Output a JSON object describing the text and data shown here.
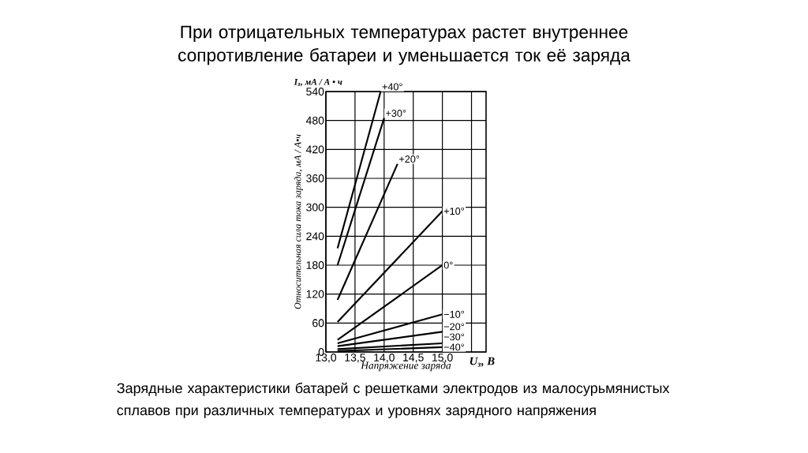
{
  "chart_data": {
    "type": "line",
    "title": "При отрицательных температурах растет внутреннее сопротивление батареи и уменьшается ток её заряда",
    "xlabel": "Напряжение заряда",
    "ylabel": "Относительная сила тока заряда, мА / А•ч",
    "annotations": [
      "I$_{з}$, мА / А • ч",
      "U$_{з}$, В",
      "Зарядные характеристики батарей с решетками электродов из малосурьмянистых сплавов при различных температурах и уровнях зарядного напряжения"
    ],
    "series": [
      {
        "name": "+40°",
        "color": "#000000",
        "x": [
          13.2,
          13.94
        ],
        "values": [
          215,
          540
        ]
      },
      {
        "name": "+30°",
        "color": "#000000",
        "x": [
          13.2,
          14.0
        ],
        "values": [
          180,
          485
        ]
      },
      {
        "name": "+20°",
        "color": "#000000",
        "x": [
          13.2,
          14.23
        ],
        "values": [
          108,
          390
        ]
      },
      {
        "name": "+10°",
        "color": "#000000",
        "x": [
          13.2,
          15.0
        ],
        "values": [
          62,
          292
        ]
      },
      {
        "name": "0°",
        "color": "#000000",
        "x": [
          13.2,
          15.0
        ],
        "values": [
          25,
          180
        ]
      },
      {
        "name": "−10°",
        "color": "#000000",
        "x": [
          13.2,
          15.0
        ],
        "values": [
          18,
          78
        ]
      },
      {
        "name": "−20°",
        "color": "#000000",
        "x": [
          13.2,
          15.0
        ],
        "values": [
          12,
          42
        ]
      },
      {
        "name": "−30°",
        "color": "#000000",
        "x": [
          13.2,
          15.0
        ],
        "values": [
          6,
          18
        ]
      },
      {
        "name": "−40°",
        "color": "#000000",
        "x": [
          13.2,
          15.0
        ],
        "values": [
          2,
          10
        ]
      }
    ],
    "xlim": [
      13.0,
      15.75
    ],
    "ylim": [
      0,
      540
    ],
    "xticks": [
      {
        "value": 13.0,
        "label": "13,0"
      },
      {
        "value": 13.5,
        "label": "13,5"
      },
      {
        "value": 14.0,
        "label": "14,0"
      },
      {
        "value": 14.5,
        "label": "14,5"
      },
      {
        "value": 15.0,
        "label": "15,0"
      },
      {
        "value": 15.5,
        "label": null
      }
    ],
    "yticks": [
      0,
      60,
      120,
      180,
      240,
      300,
      360,
      420,
      480,
      540
    ],
    "grid": true
  }
}
